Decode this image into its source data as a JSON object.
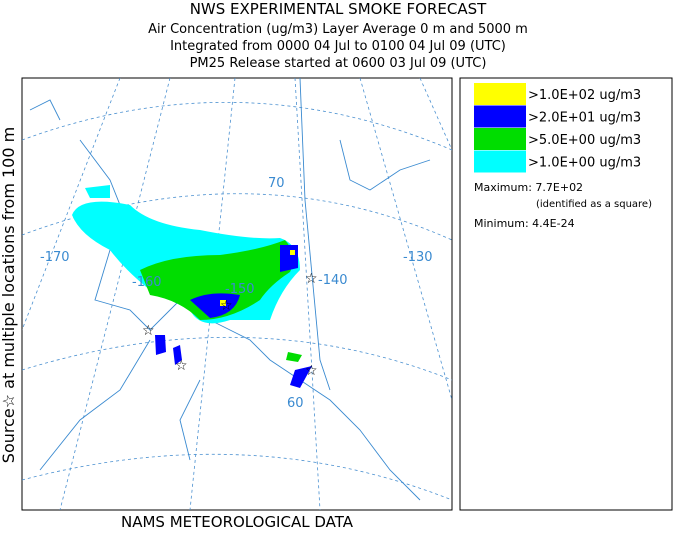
{
  "header": {
    "title": "NWS EXPERIMENTAL SMOKE FORECAST",
    "lines": [
      "Air Concentration (ug/m3) Layer Average    0 m and  5000 m",
      "Integrated from 0000 04 Jul to 0100 04 Jul 09 (UTC)",
      "PM25 Release started at 0600 03 Jul 09 (UTC)"
    ]
  },
  "side_label": "Source☆ at multiple locations   from   100 m",
  "map": {
    "graticule_labels": [
      "-170",
      "-160",
      "-150",
      "-140",
      "-130",
      "70",
      "60"
    ]
  },
  "legend": {
    "entries": [
      {
        "label": ">1.0E+02 ug/m3",
        "color": "#ffff00"
      },
      {
        "label": ">2.0E+01 ug/m3",
        "color": "#0000ff"
      },
      {
        "label": ">5.0E+00 ug/m3",
        "color": "#00dd00"
      },
      {
        "label": ">1.0E+00 ug/m3",
        "color": "#00ffff"
      }
    ],
    "maximum": "Maximum: 7.7E+02",
    "maximum_note": "(identified as a square)",
    "minimum": "Minimum: 4.4E-24"
  },
  "footer": "NAMS METEOROLOGICAL DATA"
}
